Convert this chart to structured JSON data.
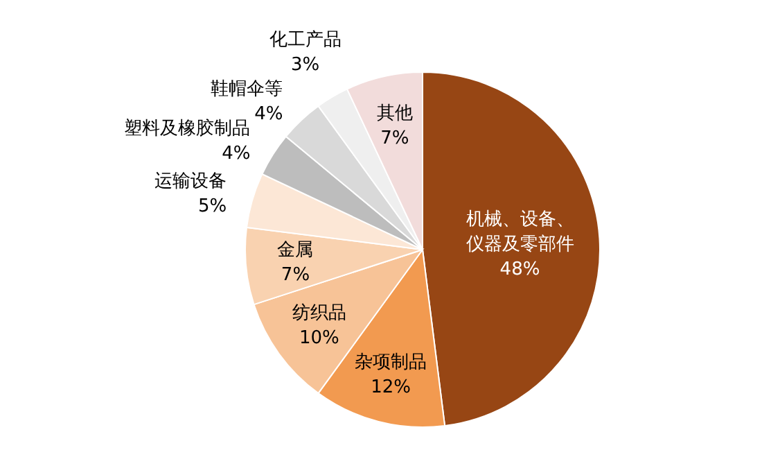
{
  "chart_data": {
    "type": "pie",
    "categories": [
      "机械、设备、仪器及零部件",
      "杂项制品",
      "纺织品",
      "金属",
      "运输设备",
      "塑料及橡胶制品",
      "鞋帽伞等",
      "化工产品",
      "其他"
    ],
    "values": [
      48,
      12,
      10,
      7,
      5,
      4,
      4,
      3,
      7
    ],
    "colors": [
      "#974614",
      "#f29a50",
      "#f7c397",
      "#f9d2b0",
      "#fce7d6",
      "#bdbdbd",
      "#d9d9d9",
      "#efefef",
      "#f2dcdb"
    ],
    "value_labels": [
      "48%",
      "12%",
      "10%",
      "7%",
      "5%",
      "4%",
      "4%",
      "3%",
      "7%"
    ]
  }
}
